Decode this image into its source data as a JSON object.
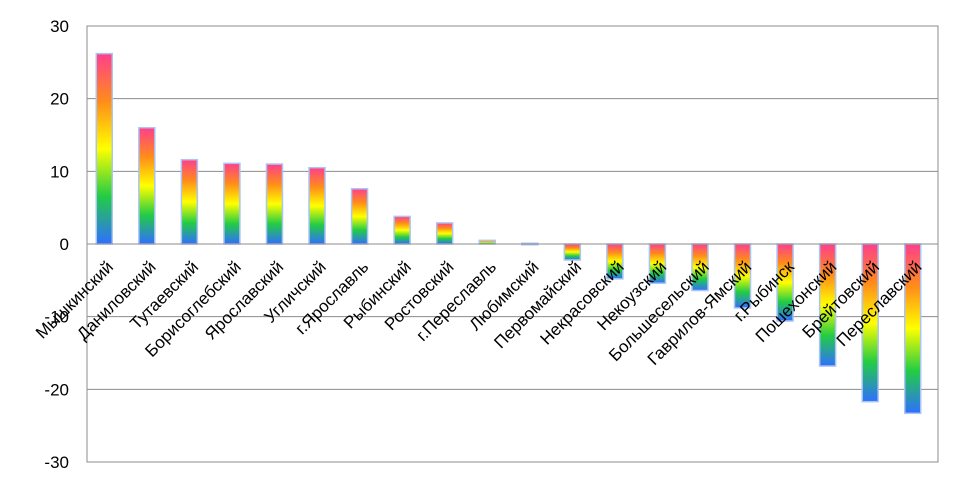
{
  "chart_data": {
    "type": "bar",
    "title": "",
    "xlabel": "",
    "ylabel": "",
    "ylim": [
      -30,
      30
    ],
    "yticks": [
      30,
      20,
      10,
      0,
      -10,
      -20,
      -30
    ],
    "grid": true,
    "legend": "none",
    "categories": [
      "Мышкинский",
      "Даниловский",
      "Тутаевский",
      "Борисоглебский",
      "Ярославский",
      "Угличский",
      "г.Ярославль",
      "Рыбинский",
      "Ростовский",
      "г.Переславль",
      "Любимский",
      "Первомайский",
      "Некрасовский",
      "Некоузский",
      "Большесельский",
      "Гаврилов-Ямский",
      "г.Рыбинск",
      "Пошехонский",
      "Брейтовский",
      "Переславский"
    ],
    "values": [
      26.2,
      16.0,
      11.6,
      11.1,
      11.0,
      10.5,
      7.6,
      3.8,
      2.9,
      0.5,
      0.1,
      -2.2,
      -4.8,
      -5.4,
      -6.4,
      -8.8,
      -10.6,
      -16.8,
      -21.7,
      -23.3
    ],
    "gradient_colors": [
      "#ff3f8c",
      "#ff8c1a",
      "#ffff00",
      "#22cc44",
      "#2f6fff"
    ]
  }
}
